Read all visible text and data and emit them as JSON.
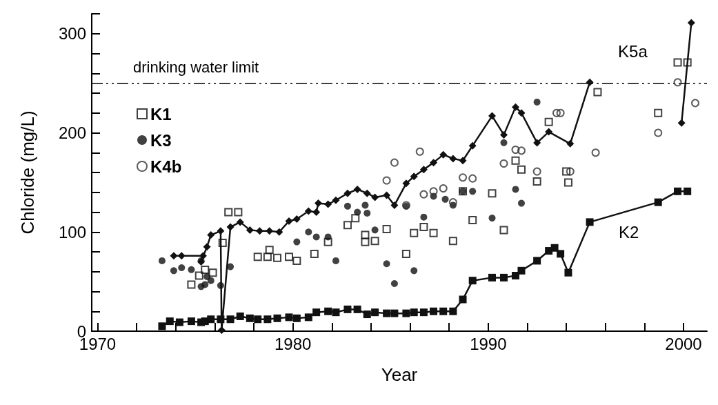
{
  "chart_data": {
    "type": "scatter",
    "xlabel": "Year",
    "ylabel": "Chloride (mg/L)",
    "xlim": [
      1969.7,
      2001.2
    ],
    "xticks": [
      1970,
      {
        "value": 1972,
        "label": null
      },
      {
        "value": 1974,
        "label": null
      },
      {
        "value": 1976,
        "label": null
      },
      {
        "value": 1978,
        "label": null
      },
      1980,
      {
        "value": 1982,
        "label": null
      },
      {
        "value": 1984,
        "label": null
      },
      {
        "value": 1986,
        "label": null
      },
      {
        "value": 1988,
        "label": null
      },
      1990,
      {
        "value": 1992,
        "label": null
      },
      {
        "value": 1994,
        "label": null
      },
      {
        "value": 1996,
        "label": null
      },
      {
        "value": 1998,
        "label": null
      },
      2000
    ],
    "ylim": [
      0,
      320
    ],
    "yticks": [
      0,
      {
        "value": 20,
        "label": null
      },
      {
        "value": 40,
        "label": null
      },
      {
        "value": 60,
        "label": null
      },
      {
        "value": 80,
        "label": null
      },
      100,
      {
        "value": 120,
        "label": null
      },
      {
        "value": 140,
        "label": null
      },
      {
        "value": 160,
        "label": null
      },
      {
        "value": 180,
        "label": null
      },
      200,
      {
        "value": 220,
        "label": null
      },
      {
        "value": 240,
        "label": null
      },
      {
        "value": 260,
        "label": null
      },
      {
        "value": 280,
        "label": null
      },
      300,
      {
        "value": 320,
        "label": null
      }
    ],
    "grid": false,
    "legend": "top left",
    "ref_lines": [
      {
        "axis": "y",
        "value": 250,
        "label": "drinking water limit",
        "line_style": "dashed",
        "color": "#000000"
      }
    ],
    "annotations": [
      {
        "text": "K5a",
        "x": 1997.4,
        "y": 282
      },
      {
        "text": "K2",
        "x": 1997.2,
        "y": 100
      }
    ],
    "series": [
      {
        "type": "line",
        "marker": "diamond",
        "color": "#111111",
        "x": [
          1973.9,
          1974.3,
          1975.4,
          1975.3,
          1975.6,
          1975.8,
          1976.3,
          1976.35,
          1976.8,
          1977.3,
          1977.8,
          1978.3,
          1978.8,
          1979.3,
          1979.8,
          1980.2,
          1980.8,
          1981.2,
          1981.3,
          1981.8,
          1982.2,
          1982.8,
          1983.3,
          1983.8,
          1984.2,
          1984.8,
          1985.2,
          1985.8,
          1986.2,
          1986.7,
          1987.2,
          1987.7,
          1988.2,
          1988.7,
          1989.2,
          1990.2,
          1990.8,
          1991.4,
          1991.7,
          1992.5,
          1993.1,
          1994.2,
          1995.2,
          1997,
          1999.9,
          2000.4
        ],
        "values": [
          76,
          76,
          76,
          70,
          85,
          97,
          101,
          1,
          105,
          110,
          102,
          101,
          101,
          100,
          111,
          113,
          121,
          120,
          129,
          128,
          132,
          139,
          143,
          139,
          135,
          137,
          127,
          149,
          156,
          163,
          170,
          178,
          174,
          172,
          187,
          217,
          198,
          226,
          220,
          190,
          201,
          189,
          251,
          null,
          210,
          311
        ]
      },
      {
        "type": "line",
        "marker": "square",
        "color": "#111111",
        "x": [
          1973.3,
          1973.7,
          1974.2,
          1974.8,
          1975.3,
          1975.5,
          1975.8,
          1976.3,
          1976.8,
          1977.3,
          1977.8,
          1978.2,
          1978.7,
          1979.2,
          1979.8,
          1980.2,
          1980.8,
          1981.2,
          1981.8,
          1982.2,
          1982.8,
          1983.3,
          1983.8,
          1984.2,
          1984.8,
          1985.2,
          1985.8,
          1986.2,
          1986.7,
          1987.2,
          1987.7,
          1988.2,
          1988.7,
          1989.2,
          1990.2,
          1990.8,
          1991.4,
          1991.7,
          1992.5,
          1993.1,
          1993.4,
          1993.7,
          1994.1,
          1995.2,
          1998.7,
          1999.7,
          2000.2
        ],
        "values": [
          5,
          10,
          9,
          10,
          9,
          10,
          12,
          12,
          12,
          15,
          13,
          12,
          12,
          13,
          14,
          13,
          14,
          19,
          20,
          19,
          22,
          22,
          17,
          19,
          18,
          18,
          18,
          19,
          19,
          20,
          20,
          20,
          32,
          51,
          54,
          54,
          56,
          61,
          71,
          81,
          84,
          78,
          59,
          110,
          130,
          141,
          141
        ]
      },
      {
        "name": "K1",
        "marker": "square",
        "color": "#111111",
        "x": [
          1974.8,
          1975.2,
          1975.5,
          1975.9,
          1976.4,
          1976.7,
          1977.2,
          1978.2,
          1978.7,
          1978.8,
          1979.2,
          1979.8,
          1980.2,
          1981.1,
          1981.8,
          1982.8,
          1983.2,
          1983.7,
          1983.7,
          1984.2,
          1984.8,
          1985.8,
          1986.2,
          1986.7,
          1987.2,
          1988.2,
          1988.7,
          1989.2,
          1990.2,
          1990.8,
          1991.4,
          1991.7,
          1992.5,
          1993.1,
          1994.0,
          1994.1,
          1995.6,
          1998.7,
          1999.7,
          2000.2
        ],
        "values": [
          47,
          56,
          62,
          59,
          89,
          120,
          120,
          75,
          75,
          82,
          74,
          75,
          71,
          78,
          90,
          107,
          114,
          97,
          90,
          91,
          103,
          78,
          99,
          105,
          99,
          91,
          141,
          112,
          139,
          102,
          172,
          163,
          151,
          211,
          161,
          150,
          241,
          220,
          271,
          271
        ]
      },
      {
        "name": "K3",
        "marker": "circle",
        "color": "#111111",
        "x": [
          1973.3,
          1973.9,
          1974.3,
          1974.8,
          1975.3,
          1975.3,
          1975.5,
          1975.8,
          1975.6,
          1976.3,
          1976.8,
          1980.2,
          1980.8,
          1981.2,
          1981.8,
          1982.2,
          1982.8,
          1983.3,
          1983.7,
          1983.8,
          1984.2,
          1984.8,
          1985.2,
          1985.8,
          1986.2,
          1986.7,
          1987.2,
          1987.8,
          1988.2,
          1988.7,
          1989.2,
          1990.2,
          1990.8,
          1991.4,
          1991.7,
          1992.5
        ],
        "values": [
          71,
          61,
          64,
          62,
          71,
          45,
          47,
          51,
          55,
          46,
          65,
          90,
          100,
          95,
          95,
          71,
          126,
          120,
          127,
          119,
          102,
          68,
          48,
          126,
          61,
          115,
          136,
          133,
          127,
          141,
          141,
          114,
          190,
          143,
          129,
          231
        ]
      },
      {
        "name": "K4b",
        "marker": "emptycircle",
        "color": "#333333",
        "x": [
          1984.8,
          1985.2,
          1985.8,
          1986.5,
          1986.7,
          1987.2,
          1987.7,
          1988.2,
          1988.7,
          1989.2,
          1990.8,
          1991.4,
          1991.7,
          1992.5,
          1993.5,
          1993.7,
          1994.2,
          1995.5,
          1998.7,
          1999.7,
          2000.6
        ],
        "values": [
          152,
          170,
          127,
          181,
          138,
          141,
          144,
          130,
          155,
          154,
          169,
          183,
          182,
          161,
          220,
          220,
          161,
          180,
          200,
          251,
          230
        ]
      }
    ]
  }
}
